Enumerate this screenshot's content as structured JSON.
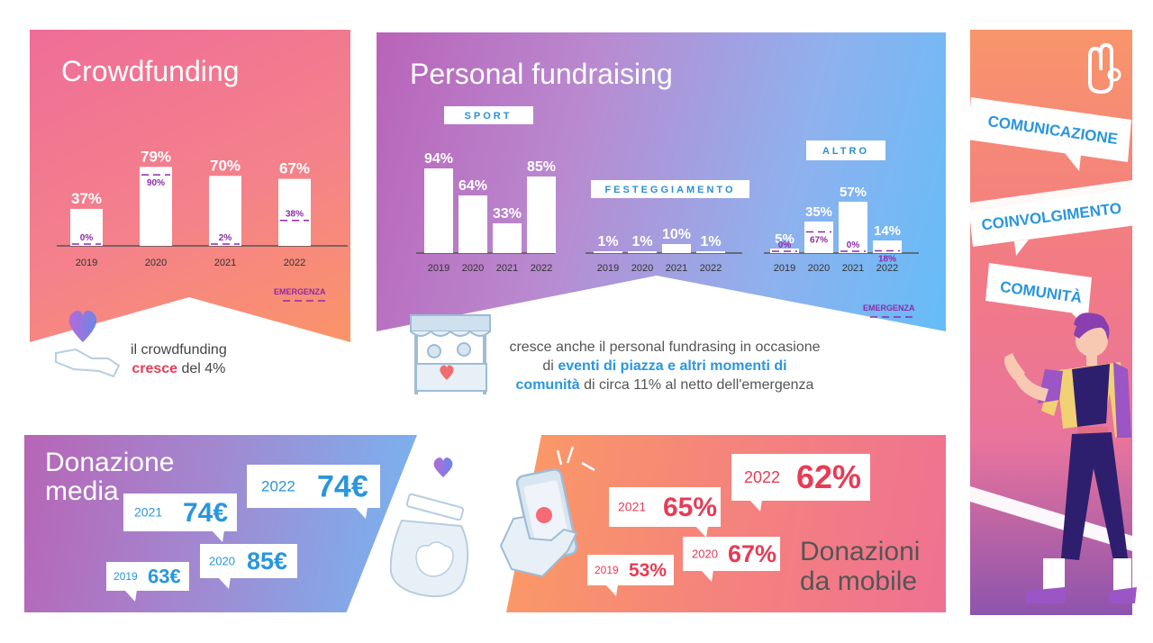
{
  "crowdfunding": {
    "title": "Crowdfunding",
    "note_line1": "il crowdfunding",
    "note_emph": "cresce",
    "note_rest": " del 4%",
    "emergency_label": "EMERGENZA"
  },
  "personal": {
    "title": "Personal fundraising",
    "note_line1": "cresce anche il personal fundrasing in occasione",
    "note_line2_pre": "di ",
    "note_line2_emph": "eventi di piazza e altri momenti di",
    "note_line3_emph": "comunità",
    "note_line3_rest": " di circa 11% al netto dell'emergenza",
    "emergency_label": "EMERGENZA"
  },
  "side": {
    "labels": [
      "COMUNICAZIONE",
      "COINVOLGIMENTO",
      "COMUNITÀ"
    ]
  },
  "donazione_media": {
    "title_line1": "Donazione",
    "title_line2": "media"
  },
  "donazioni_mobile": {
    "title_line1": "Donazioni",
    "title_line2": "da mobile"
  },
  "colors": {
    "emergency": "#8f2aa8",
    "accent_blue": "#2a96dc",
    "accent_red": "#e63c55"
  },
  "chart_data": [
    {
      "type": "bar",
      "title": "Crowdfunding",
      "categories": [
        "2019",
        "2020",
        "2021",
        "2022"
      ],
      "series": [
        {
          "name": "",
          "values": [
            37,
            79,
            70,
            67
          ],
          "labels": [
            "37%",
            "79%",
            "70%",
            "67%"
          ]
        },
        {
          "name": "EMERGENZA",
          "values": [
            0,
            90,
            2,
            38
          ],
          "labels": [
            "0%",
            "90%",
            "2%",
            "38%"
          ]
        }
      ]
    },
    {
      "type": "bar",
      "title": "SPORT",
      "categories": [
        "2019",
        "2020",
        "2021",
        "2022"
      ],
      "series": [
        {
          "name": "",
          "values": [
            94,
            64,
            33,
            85
          ],
          "labels": [
            "94%",
            "64%",
            "33%",
            "85%"
          ]
        }
      ]
    },
    {
      "type": "bar",
      "title": "FESTEGGIAMENTO",
      "categories": [
        "2019",
        "2020",
        "2021",
        "2022"
      ],
      "series": [
        {
          "name": "",
          "values": [
            1,
            1,
            10,
            1
          ],
          "labels": [
            "1%",
            "1%",
            "10%",
            "1%"
          ]
        }
      ]
    },
    {
      "type": "bar",
      "title": "ALTRO",
      "categories": [
        "2019",
        "2020",
        "2021",
        "2022"
      ],
      "series": [
        {
          "name": "",
          "values": [
            5,
            35,
            57,
            14
          ],
          "labels": [
            "5%",
            "35%",
            "57%",
            "14%"
          ]
        },
        {
          "name": "EMERGENZA",
          "values": [
            0,
            67,
            0,
            18
          ],
          "labels": [
            "0%",
            "67%",
            "0%",
            "18%"
          ]
        }
      ]
    },
    {
      "type": "table",
      "title": "Donazione media",
      "categories": [
        "2019",
        "2020",
        "2021",
        "2022"
      ],
      "values": [
        63,
        85,
        74,
        74
      ],
      "labels": [
        "63€",
        "85€",
        "74€",
        "74€"
      ]
    },
    {
      "type": "table",
      "title": "Donazioni da mobile",
      "categories": [
        "2019",
        "2020",
        "2021",
        "2022"
      ],
      "values": [
        53,
        67,
        65,
        62
      ],
      "labels": [
        "53%",
        "67%",
        "65%",
        "62%"
      ]
    }
  ]
}
